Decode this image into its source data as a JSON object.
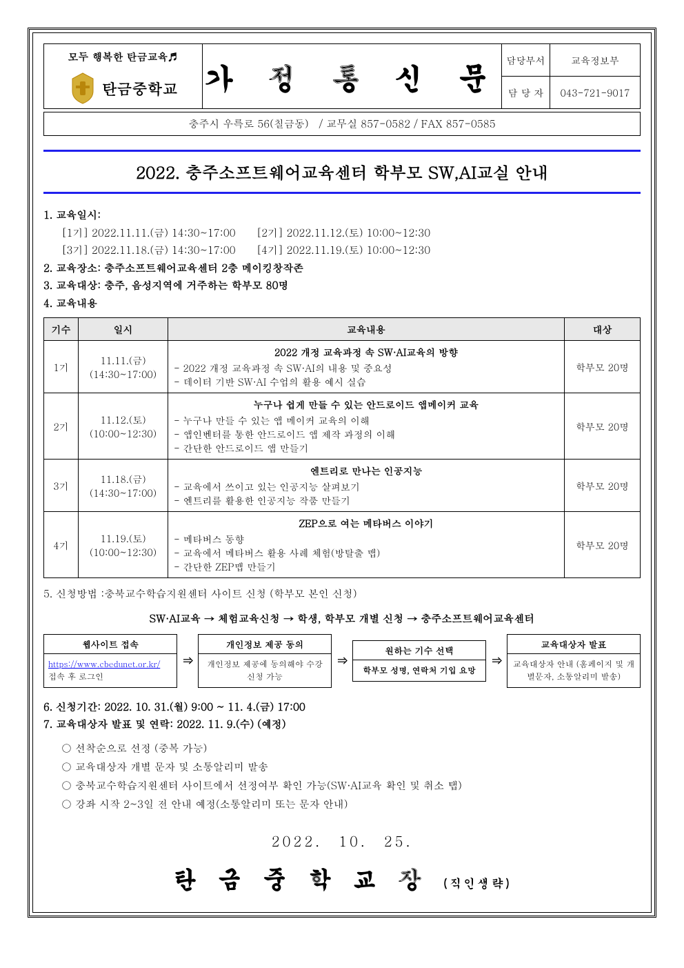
{
  "header": {
    "slogan": "모두 행복한 탄금교육♬",
    "school_name": "탄금중학교",
    "logo_colors": {
      "outer": "#d4af37",
      "inner": "#b8860b"
    },
    "title": "가 정 통 신 문",
    "contact": {
      "dept_label": "담당부서",
      "dept_value": "교육정보부",
      "person_label": "담 당 자",
      "person_value": "043-721-9017"
    },
    "address": "충주시 우륵로 56(칠금동)　/ 교무실 857-0582 / FAX 857-0585"
  },
  "main_title": "2022. 충주소프트웨어교육센터 학부모 SW,AI교실 안내",
  "info": {
    "item1_label": "1. 교육일시:",
    "schedule_line1": "[1기] 2022.11.11.(금) 14:30~17:00　　[2기] 2022.11.12.(토) 10:00~12:30",
    "schedule_line2": "[3기] 2022.11.18.(금) 14:30~17:00　　[4기] 2022.11.19.(토) 10:00~12:30",
    "item2": "2. 교육장소: 충주소프트웨어교육센터 2층 메이킹창작존",
    "item3": "3. 교육대상: 충주, 음성지역에 거주하는 학부모 80명",
    "item4": "4. 교육내용"
  },
  "table": {
    "headers": {
      "kisu": "기수",
      "date": "일시",
      "content": "교육내용",
      "target": "대상"
    },
    "rows": [
      {
        "kisu": "1기",
        "date_l1": "11.11.(금)",
        "date_l2": "(14:30~17:00)",
        "title": "2022 개정 교육과정 속 SW·AI교육의 방향",
        "lines": [
          "- 2022 개정 교육과정 속 SW·AI의 내용 및 중요성",
          "- 데이터 기반 SW·AI 수업의 활용 예시 실습"
        ],
        "target": "학부모 20명"
      },
      {
        "kisu": "2기",
        "date_l1": "11.12.(토)",
        "date_l2": "(10:00~12:30)",
        "title": "누구나 쉽게 만들 수 있는 안드로이드 앱메이커 교육",
        "lines": [
          "- 누구나 만들 수 있는 앱 메이커 교육의 이해",
          "- 앱인벤터를 통한 안드로이드 앱 제작 과정의 이해",
          "- 간단한 안드로이드 앱 만들기"
        ],
        "target": "학부모 20명"
      },
      {
        "kisu": "3기",
        "date_l1": "11.18.(금)",
        "date_l2": "(14:30~17:00)",
        "title": "엔트리로 만나는 인공지능",
        "lines": [
          "- 교육에서 쓰이고 있는 인공지능 살펴보기",
          "- 엔트리를 활용한 인공지능 작품 만들기"
        ],
        "target": "학부모 20명"
      },
      {
        "kisu": "4기",
        "date_l1": "11.19.(토)",
        "date_l2": "(10:00~12:30)",
        "title": "ZEP으로 여는 메타버스 이야기",
        "lines": [
          "- 메타버스 동향",
          "- 교육에서 메타버스 활용 사례 체험(방탈출 맵)",
          "- 간단한 ZEP맵 만들기"
        ],
        "target": "학부모 20명"
      }
    ]
  },
  "item5": "5. 신청방법 :충북교수학습지원센터 사이트 신청 (학부모 본인 신청)",
  "flow_path": "SW·AI교육 → 체험교육신청 → 학생, 학부모 개별 신청 → 충주소프트웨어교육센터",
  "flow_boxes": [
    {
      "header": "웹사이트 접속",
      "link": "https://www.cbedunet.or.kr/",
      "body": "접속 후 로그인"
    },
    {
      "header": "개인정보 제공 동의",
      "body": "개인정보 제공에 동의해야 수강 신청 가능"
    },
    {
      "header": "원하는 기수 선택",
      "body": "학부모 성명, 연락처 기입 요망"
    },
    {
      "header": "교육대상자 발표",
      "body": "교육대상자 안내 (홈페이지 및 개별문자, 소통알리미 발송)"
    }
  ],
  "arrow": "⇒",
  "item6": "6. 신청기간: 2022. 10. 31.(월) 9:00 ~ 11. 4.(금) 17:00",
  "item7": "7. 교육대상자 발표 및 연락: 2022. 11. 9.(수) (예정)",
  "sub_items": [
    "선착순으로 선정 (중복 가능)",
    "교육대상자 개별 문자 및 소통알리미 발송",
    "충북교수학습지원센터 사이트에서 선정여부 확인 가능(SW·AI교육 확인 및 취소 탭)",
    "강좌 시작 2~3일 전 안내 예정(소통알리미 또는 문자 안내)"
  ],
  "footer_date": "2022.　10.　25.",
  "footer_sign": "탄 금 중 학 교 장",
  "footer_note": "(직인생략)"
}
